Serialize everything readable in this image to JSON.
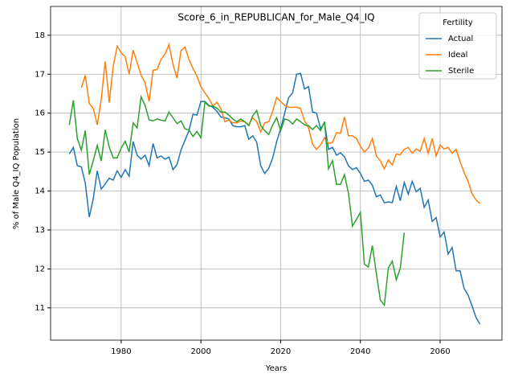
{
  "chart_data": {
    "type": "line",
    "title": "Score_6_in_REPUBLICAN_for_Male_Q4_IQ",
    "x_label": "Years",
    "y_label": "% of Male Q4_IQ Population",
    "legend_title": "Fertility",
    "legend_loc": "upper right",
    "grid": true,
    "xlim": [
      1962.3,
      2075.5
    ],
    "ylim": [
      10.17,
      18.74
    ],
    "xticks": [
      1980,
      2000,
      2020,
      2040,
      2060
    ],
    "yticks": [
      11,
      12,
      13,
      14,
      15,
      16,
      17,
      18
    ],
    "x": [
      1967,
      1968,
      1969,
      1970,
      1971,
      1972,
      1973,
      1974,
      1975,
      1976,
      1977,
      1978,
      1979,
      1980,
      1981,
      1982,
      1983,
      1984,
      1985,
      1986,
      1987,
      1988,
      1989,
      1990,
      1991,
      1992,
      1993,
      1994,
      1995,
      1996,
      1997,
      1998,
      1999,
      2000,
      2001,
      2002,
      2003,
      2004,
      2005,
      2006,
      2007,
      2008,
      2009,
      2010,
      2011,
      2012,
      2013,
      2014,
      2015,
      2016,
      2017,
      2018,
      2019,
      2020,
      2021,
      2022,
      2023,
      2024,
      2025,
      2026,
      2027,
      2028,
      2029,
      2030,
      2031,
      2032,
      2033,
      2034,
      2035,
      2036,
      2037,
      2038,
      2039,
      2040,
      2041,
      2042,
      2043,
      2044,
      2045,
      2046,
      2047,
      2048,
      2049,
      2050,
      2051,
      2052,
      2053,
      2054,
      2055,
      2056,
      2057,
      2058,
      2059,
      2060,
      2061,
      2062,
      2063,
      2064,
      2065,
      2066,
      2067,
      2068,
      2069,
      2070
    ],
    "series": [
      {
        "name": "Actual",
        "color": "#1f77b4",
        "values": [
          14.95,
          15.12,
          14.65,
          14.62,
          14.2,
          13.33,
          13.8,
          14.52,
          14.05,
          14.18,
          14.33,
          14.28,
          14.52,
          14.35,
          14.55,
          14.38,
          15.27,
          14.92,
          14.82,
          14.92,
          14.65,
          15.22,
          14.85,
          14.9,
          14.82,
          14.87,
          14.55,
          14.68,
          15.05,
          15.3,
          15.55,
          15.97,
          15.95,
          16.3,
          16.3,
          16.2,
          16.15,
          16.05,
          15.9,
          15.88,
          15.85,
          15.68,
          15.65,
          15.65,
          15.68,
          15.33,
          15.42,
          15.25,
          14.65,
          14.45,
          14.58,
          14.85,
          15.27,
          15.6,
          16.0,
          16.4,
          16.52,
          17.0,
          17.02,
          16.62,
          16.68,
          16.03,
          16.0,
          15.6,
          15.75,
          15.07,
          15.12,
          14.92,
          14.98,
          14.88,
          14.65,
          14.55,
          14.6,
          14.45,
          14.25,
          14.28,
          14.15,
          13.85,
          13.9,
          13.7,
          13.72,
          13.7,
          14.12,
          13.75,
          14.22,
          13.92,
          14.25,
          13.98,
          14.07,
          13.58,
          13.77,
          13.22,
          13.32,
          12.82,
          12.95,
          12.38,
          12.55,
          11.95,
          11.95,
          11.5,
          11.33,
          11.05,
          10.75,
          10.58
        ]
      },
      {
        "name": "Ideal",
        "color": "#ff7f0e",
        "values": [
          null,
          null,
          null,
          16.65,
          16.97,
          16.25,
          16.12,
          15.7,
          16.35,
          17.33,
          16.27,
          17.2,
          17.72,
          17.55,
          17.45,
          17.0,
          17.62,
          17.3,
          16.97,
          16.78,
          16.3,
          17.1,
          17.12,
          17.38,
          17.52,
          17.76,
          17.25,
          16.9,
          17.6,
          17.7,
          17.38,
          17.15,
          16.95,
          16.68,
          16.52,
          16.38,
          16.18,
          16.28,
          16.12,
          15.78,
          15.82,
          15.75,
          15.75,
          15.8,
          15.78,
          15.7,
          15.88,
          15.78,
          15.52,
          15.75,
          15.78,
          16.05,
          16.4,
          16.3,
          16.2,
          16.15,
          16.15,
          16.15,
          16.12,
          15.8,
          15.62,
          15.2,
          15.07,
          15.18,
          15.37,
          15.22,
          15.25,
          15.5,
          15.48,
          15.9,
          15.42,
          15.42,
          15.35,
          15.15,
          15.0,
          15.1,
          15.35,
          14.9,
          14.78,
          14.57,
          14.8,
          14.67,
          14.95,
          14.93,
          15.07,
          15.12,
          14.97,
          15.08,
          15.02,
          15.35,
          14.97,
          15.35,
          14.9,
          15.18,
          15.08,
          15.12,
          14.97,
          15.07,
          14.75,
          14.48,
          14.25,
          13.93,
          13.77,
          13.68
        ]
      },
      {
        "name": "Sterile",
        "color": "#2ca02c",
        "values": [
          15.7,
          16.33,
          15.35,
          15.05,
          15.55,
          14.42,
          14.78,
          15.17,
          14.77,
          15.57,
          15.13,
          14.85,
          14.85,
          15.1,
          15.28,
          15.0,
          15.75,
          15.62,
          16.42,
          16.2,
          15.83,
          15.8,
          15.85,
          15.82,
          15.8,
          16.03,
          15.88,
          15.73,
          15.8,
          15.6,
          15.57,
          15.4,
          15.53,
          15.37,
          16.28,
          16.18,
          16.18,
          16.13,
          16.03,
          16.03,
          15.95,
          15.85,
          15.78,
          15.85,
          15.78,
          15.68,
          15.93,
          16.07,
          15.68,
          15.55,
          15.45,
          15.7,
          15.88,
          15.55,
          15.85,
          15.82,
          15.72,
          15.85,
          15.78,
          15.7,
          15.68,
          15.58,
          15.68,
          15.55,
          15.78,
          14.57,
          14.78,
          14.17,
          14.17,
          14.42,
          13.95,
          13.1,
          13.27,
          13.45,
          12.12,
          12.05,
          12.6,
          11.88,
          11.2,
          11.07,
          12.02,
          12.2,
          11.72,
          12.02,
          12.93,
          null,
          null,
          null,
          null,
          null,
          null,
          null,
          null,
          null,
          null,
          null,
          null,
          null,
          null,
          null,
          null,
          null,
          null,
          null
        ]
      }
    ]
  }
}
